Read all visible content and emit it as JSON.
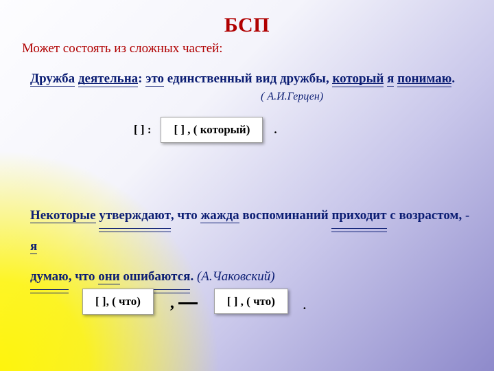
{
  "title": "БСП",
  "subtitle": "Может состоять  из сложных частей:",
  "example1": {
    "w1": "Дружба",
    "w2": "деятельна",
    "colon": ":",
    "w3": "это",
    "mid": " единственный вид дружбы, ",
    "w4": "который",
    "w5": "я",
    "w6": "понимаю",
    "end": ".",
    "attribution": "( А.И.Герцен)"
  },
  "scheme1": {
    "prefix": "[         ]  :",
    "box": "[        ]  , ( который)",
    "trail": "."
  },
  "example2": {
    "w1": "Некоторые",
    "w2": "утверждают",
    "t1": ", что ",
    "w3": "жажда",
    "t2": " воспоминаний ",
    "w4": "приходит",
    "t3": " с возрастом, - ",
    "w5": "я",
    "w6": "думаю",
    "t4": ", что ",
    "w7": "они",
    "w8": "ошибаются",
    "end": ".",
    "attribution": "  (А.Чаковский)"
  },
  "scheme2": {
    "box1": "[       ], ( что)",
    "connector": ",",
    "box2": "[         ]  , ( что)",
    "trail": "."
  },
  "style": {
    "title_color": "#b00000",
    "body_color": "#0b1d73",
    "box_bg": "#ffffff",
    "box_border": "#9f9f9f",
    "bg_yellow": "#fff500",
    "bg_lilac": "#8e8acb",
    "title_fontsize_pt": 22,
    "body_fontsize_pt": 14,
    "slide_width": 720,
    "slide_height": 540
  }
}
